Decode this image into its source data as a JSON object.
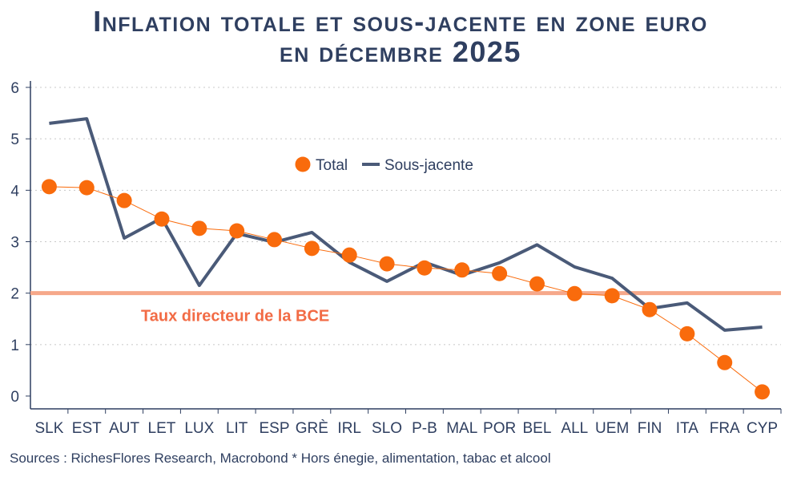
{
  "chart_data": {
    "type": "line",
    "title_line1": "Inflation totale et sous-jacente en zone euro",
    "title_line2": "en décembre 2025",
    "categories": [
      "SLK",
      "EST",
      "AUT",
      "LET",
      "LUX",
      "LIT",
      "ESP",
      "GRÈ",
      "IRL",
      "SLO",
      "P-B",
      "MAL",
      "POR",
      "BEL",
      "ALL",
      "UEM",
      "FIN",
      "ITA",
      "FRA",
      "CYP"
    ],
    "series": [
      {
        "name": "Total",
        "color": "#f96b0c",
        "style": "markers",
        "values": [
          4.07,
          4.05,
          3.8,
          3.44,
          3.26,
          3.21,
          3.04,
          2.87,
          2.74,
          2.57,
          2.49,
          2.45,
          2.38,
          2.18,
          1.99,
          1.95,
          1.68,
          1.21,
          0.65,
          0.08
        ]
      },
      {
        "name": "Sous-jacente",
        "color": "#4a5a78",
        "style": "line",
        "values": [
          5.3,
          5.39,
          3.07,
          3.46,
          2.15,
          3.16,
          2.99,
          3.18,
          2.6,
          2.23,
          2.6,
          2.35,
          2.59,
          2.94,
          2.51,
          2.29,
          1.7,
          1.81,
          1.28,
          1.34
        ]
      }
    ],
    "reference_line": {
      "value": 2,
      "label": "Taux directeur de la BCE",
      "color": "#f6a88a",
      "label_color": "#f26b45"
    },
    "ylim": [
      0,
      6
    ],
    "yticks": [
      0,
      1,
      2,
      3,
      4,
      5,
      6
    ],
    "grid": true,
    "legend_position": "top-center",
    "source": "Sources : RichesFlores Research, Macrobond * Hors énegie, alimentation, tabac et alcool"
  }
}
